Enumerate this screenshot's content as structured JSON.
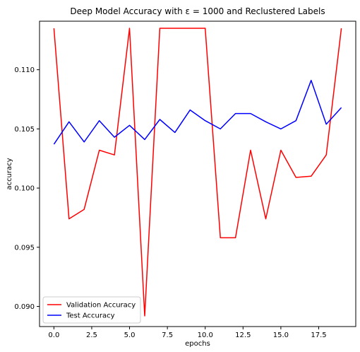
{
  "chart_data": {
    "type": "line",
    "title": "Deep Model Accuracy with ε = 1000 and Reclustered Labels",
    "xlabel": "epochs",
    "ylabel": "accuracy",
    "xlim": [
      -0.95,
      19.95
    ],
    "ylim": [
      0.0883,
      0.1141
    ],
    "xticks": [
      0.0,
      2.5,
      5.0,
      7.5,
      10.0,
      12.5,
      15.0,
      17.5
    ],
    "xtick_labels": [
      "0.0",
      "2.5",
      "5.0",
      "7.5",
      "10.0",
      "12.5",
      "15.0",
      "17.5"
    ],
    "yticks": [
      0.09,
      0.095,
      0.1,
      0.105,
      0.11
    ],
    "ytick_labels": [
      "0.090",
      "0.095",
      "0.100",
      "0.105",
      "0.110"
    ],
    "grid": false,
    "legend_position": "lower-left",
    "x": [
      0,
      1,
      2,
      3,
      4,
      5,
      6,
      7,
      8,
      9,
      10,
      11,
      12,
      13,
      14,
      15,
      16,
      17,
      18,
      19
    ],
    "series": [
      {
        "name": "Validation Accuracy",
        "color": "#ff0000",
        "values": [
          0.1135,
          0.0974,
          0.0982,
          0.1032,
          0.1028,
          0.1135,
          0.0892,
          0.1135,
          0.1135,
          0.1135,
          0.1135,
          0.0958,
          0.0958,
          0.1032,
          0.0974,
          0.1032,
          0.1009,
          0.101,
          0.1028,
          0.1135
        ]
      },
      {
        "name": "Test Accuracy",
        "color": "#0000ff",
        "values": [
          0.1037,
          0.1056,
          0.1039,
          0.1057,
          0.1043,
          0.1053,
          0.1041,
          0.1058,
          0.1047,
          0.1066,
          0.1057,
          0.105,
          0.1063,
          0.1063,
          0.1056,
          0.105,
          0.1057,
          0.1091,
          0.1054,
          0.1068
        ]
      }
    ]
  }
}
